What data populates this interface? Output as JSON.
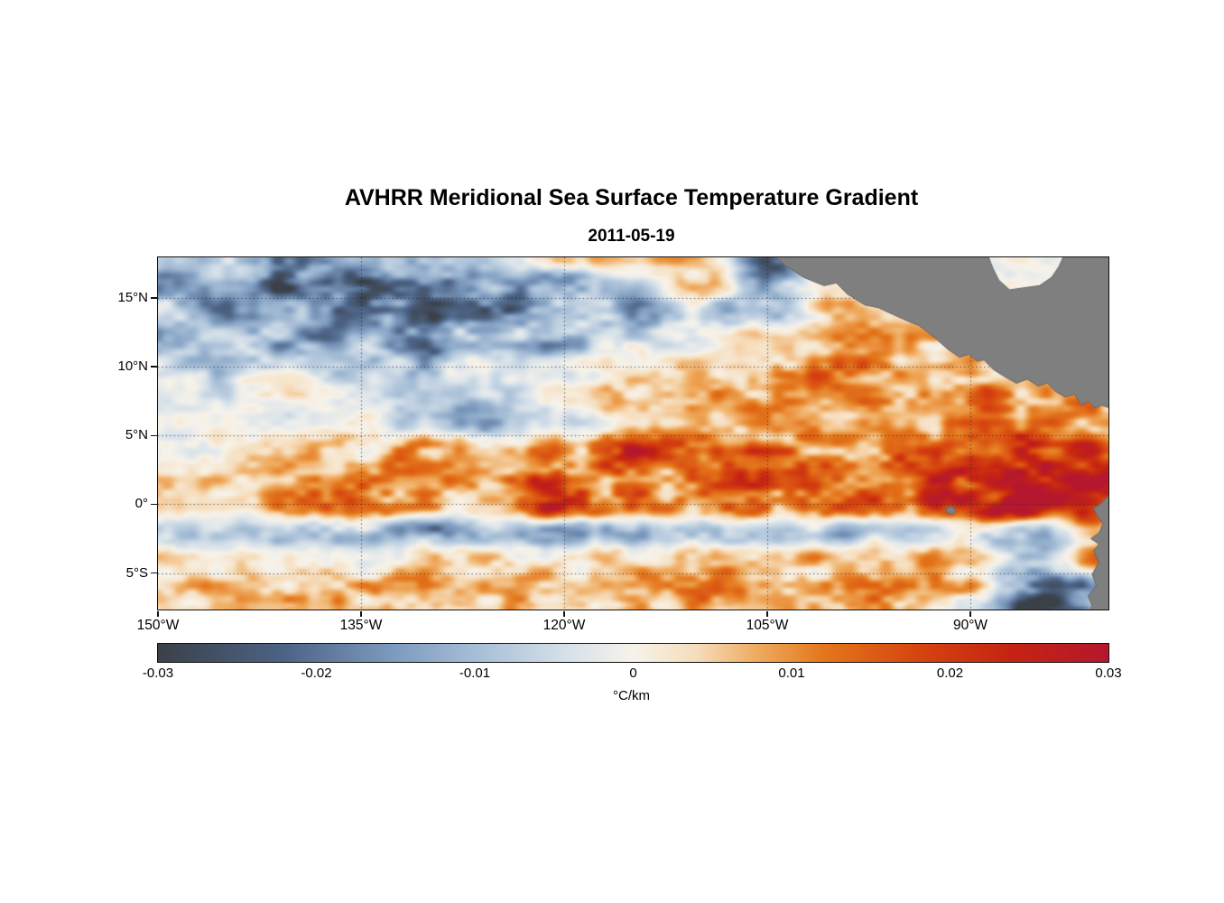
{
  "chart_data": {
    "type": "heatmap",
    "title": "AVHRR Meridional Sea Surface Temperature Gradient",
    "subtitle": "2011-05-19",
    "units": "°C/km",
    "lon_range": [
      -150.0,
      -79.8
    ],
    "lat_range": [
      -7.66,
      17.96
    ],
    "grid_on": true,
    "grid_style": "dotted",
    "x_ticks": [
      {
        "label": "150°W",
        "lon": -150
      },
      {
        "label": "135°W",
        "lon": -135
      },
      {
        "label": "120°W",
        "lon": -120
      },
      {
        "label": "105°W",
        "lon": -105
      },
      {
        "label": "90°W",
        "lon": -90
      }
    ],
    "y_ticks": [
      {
        "label": "15°N",
        "lat": 15
      },
      {
        "label": "10°N",
        "lat": 10
      },
      {
        "label": "5°N",
        "lat": 5
      },
      {
        "label": "0°",
        "lat": 0
      },
      {
        "label": "5°S",
        "lat": -5
      }
    ],
    "colorbar": {
      "orientation": "horizontal",
      "min": -0.03,
      "max": 0.03,
      "label": "°C/km",
      "ticks": [
        {
          "label": "-0.03",
          "value": -0.03
        },
        {
          "label": "-0.02",
          "value": -0.02
        },
        {
          "label": "-0.01",
          "value": -0.01
        },
        {
          "label": "0",
          "value": 0
        },
        {
          "label": "0.01",
          "value": 0.01
        },
        {
          "label": "0.02",
          "value": 0.02
        },
        {
          "label": "0.03",
          "value": 0.03
        }
      ]
    },
    "colormap": [
      {
        "value": -0.03,
        "color": "#3b4149"
      },
      {
        "value": -0.022,
        "color": "#4d6486"
      },
      {
        "value": -0.015,
        "color": "#7e9cc0"
      },
      {
        "value": -0.009,
        "color": "#aec4da"
      },
      {
        "value": -0.004,
        "color": "#d8e2ea"
      },
      {
        "value": 0.0,
        "color": "#f7f3ea"
      },
      {
        "value": 0.004,
        "color": "#f6ddbc"
      },
      {
        "value": 0.008,
        "color": "#efa95c"
      },
      {
        "value": 0.012,
        "color": "#e4771c"
      },
      {
        "value": 0.018,
        "color": "#d6450f"
      },
      {
        "value": 0.024,
        "color": "#c52313"
      },
      {
        "value": 0.03,
        "color": "#b5182e"
      }
    ],
    "grid_lons": [
      -150,
      -145,
      -140,
      -135,
      -130,
      -125,
      -120,
      -115,
      -110,
      -105,
      -100,
      -95,
      -90,
      -85,
      -80
    ],
    "grid_lats": [
      18,
      16,
      14,
      12,
      10,
      8,
      6,
      4,
      2,
      0,
      -2,
      -4,
      -6,
      -8
    ],
    "values": [
      [
        -0.003,
        -0.01,
        -0.018,
        -0.008,
        -0.012,
        -0.004,
        0.008,
        0.003,
        0.01,
        -0.018,
        0.002,
        0.001,
        0.001,
        0.0,
        0.0
      ],
      [
        -0.016,
        -0.007,
        -0.022,
        -0.024,
        -0.016,
        -0.01,
        -0.014,
        -0.005,
        0.007,
        -0.014,
        0.003,
        0.002,
        0.001,
        0.0,
        0.0
      ],
      [
        -0.006,
        -0.015,
        -0.01,
        -0.026,
        -0.022,
        -0.02,
        -0.011,
        -0.016,
        -0.007,
        -0.009,
        0.006,
        0.004,
        0.002,
        0.001,
        0.0
      ],
      [
        -0.012,
        -0.005,
        -0.016,
        -0.009,
        -0.018,
        -0.007,
        -0.013,
        -0.005,
        -0.003,
        0.005,
        0.008,
        0.007,
        0.005,
        0.002,
        0.001
      ],
      [
        -0.004,
        -0.008,
        -0.003,
        -0.006,
        -0.01,
        -0.004,
        -0.002,
        0.002,
        0.006,
        0.01,
        0.012,
        0.009,
        0.011,
        0.007,
        0.004
      ],
      [
        0.002,
        -0.003,
        0.002,
        -0.002,
        -0.004,
        -0.006,
        0.002,
        0.005,
        0.01,
        0.008,
        0.014,
        0.01,
        0.013,
        0.008,
        0.01
      ],
      [
        0.0,
        0.002,
        -0.002,
        0.003,
        -0.009,
        -0.011,
        -0.006,
        0.004,
        0.006,
        0.01,
        0.006,
        0.009,
        0.011,
        0.013,
        0.009
      ],
      [
        0.002,
        0.003,
        0.004,
        0.006,
        0.012,
        0.008,
        0.01,
        0.022,
        0.014,
        0.012,
        0.01,
        0.012,
        0.014,
        0.018,
        0.021
      ],
      [
        0.003,
        0.004,
        0.005,
        0.013,
        0.008,
        0.01,
        0.018,
        0.016,
        0.018,
        0.02,
        0.018,
        0.016,
        0.022,
        0.026,
        0.028
      ],
      [
        0.002,
        0.004,
        0.009,
        0.015,
        0.006,
        0.008,
        0.028,
        0.012,
        0.014,
        0.016,
        0.014,
        0.013,
        0.026,
        0.03,
        0.03
      ],
      [
        -0.004,
        -0.007,
        -0.011,
        -0.008,
        -0.013,
        -0.01,
        -0.015,
        -0.012,
        -0.01,
        -0.008,
        -0.01,
        -0.006,
        -0.005,
        -0.008,
        0.008
      ],
      [
        0.002,
        0.003,
        0.004,
        0.002,
        0.005,
        0.006,
        0.004,
        0.006,
        0.008,
        0.005,
        0.006,
        0.008,
        0.004,
        -0.01,
        0.012
      ],
      [
        0.004,
        0.006,
        0.008,
        0.006,
        0.01,
        0.004,
        0.008,
        0.006,
        0.01,
        0.008,
        0.007,
        0.01,
        0.009,
        -0.022,
        -0.014
      ],
      [
        0.002,
        0.004,
        0.006,
        0.009,
        0.004,
        0.006,
        0.005,
        0.008,
        0.006,
        0.004,
        0.008,
        0.007,
        -0.004,
        -0.026,
        -0.018
      ]
    ],
    "land_color": "#7f7f7f",
    "land_edge_color": "#666666",
    "land_polygons": [
      {
        "name": "central-america-mexico",
        "points": [
          [
            -104.5,
            18.1
          ],
          [
            -88.7,
            18.1
          ],
          [
            -88.35,
            17.2
          ],
          [
            -87.9,
            16.3
          ],
          [
            -87.1,
            15.6
          ],
          [
            -86.0,
            15.75
          ],
          [
            -84.9,
            15.9
          ],
          [
            -84.0,
            16.5
          ],
          [
            -83.45,
            17.3
          ],
          [
            -83.1,
            18.1
          ],
          [
            -79.7,
            18.1
          ],
          [
            -79.7,
            7.0
          ],
          [
            -80.3,
            7.2
          ],
          [
            -80.8,
            7.0
          ],
          [
            -81.3,
            7.5
          ],
          [
            -81.8,
            7.2
          ],
          [
            -82.3,
            8.0
          ],
          [
            -83.0,
            7.8
          ],
          [
            -83.7,
            8.2
          ],
          [
            -84.3,
            8.8
          ],
          [
            -85.0,
            8.6
          ],
          [
            -85.8,
            9.1
          ],
          [
            -86.6,
            8.8
          ],
          [
            -87.5,
            9.3
          ],
          [
            -88.3,
            9.8
          ],
          [
            -89.0,
            10.5
          ],
          [
            -89.5,
            10.4
          ],
          [
            -90.1,
            10.9
          ],
          [
            -90.8,
            10.7
          ],
          [
            -91.7,
            11.3
          ],
          [
            -92.6,
            12.1
          ],
          [
            -93.8,
            13.0
          ],
          [
            -94.8,
            13.4
          ],
          [
            -95.7,
            13.8
          ],
          [
            -96.8,
            14.3
          ],
          [
            -97.8,
            14.5
          ],
          [
            -99.1,
            15.3
          ],
          [
            -99.9,
            16.1
          ],
          [
            -100.8,
            15.9
          ],
          [
            -102.3,
            16.5
          ],
          [
            -103.7,
            17.4
          ]
        ]
      },
      {
        "name": "south-america-coast",
        "points": [
          [
            -79.7,
            0.7
          ],
          [
            -80.3,
            0.1
          ],
          [
            -80.9,
            -0.3
          ],
          [
            -80.6,
            -0.9
          ],
          [
            -80.2,
            -1.4
          ],
          [
            -80.5,
            -2.1
          ],
          [
            -81.1,
            -2.5
          ],
          [
            -80.5,
            -2.9
          ],
          [
            -80.9,
            -3.4
          ],
          [
            -80.5,
            -4.2
          ],
          [
            -81.0,
            -5.1
          ],
          [
            -80.7,
            -5.9
          ],
          [
            -81.3,
            -6.7
          ],
          [
            -81.0,
            -7.4
          ],
          [
            -81.2,
            -7.8
          ],
          [
            -79.7,
            -7.8
          ]
        ]
      },
      {
        "name": "galapagos-islands",
        "points": [
          [
            -91.8,
            -0.25
          ],
          [
            -91.35,
            -0.15
          ],
          [
            -91.05,
            -0.45
          ],
          [
            -91.3,
            -0.75
          ],
          [
            -91.75,
            -0.6
          ]
        ]
      }
    ]
  }
}
